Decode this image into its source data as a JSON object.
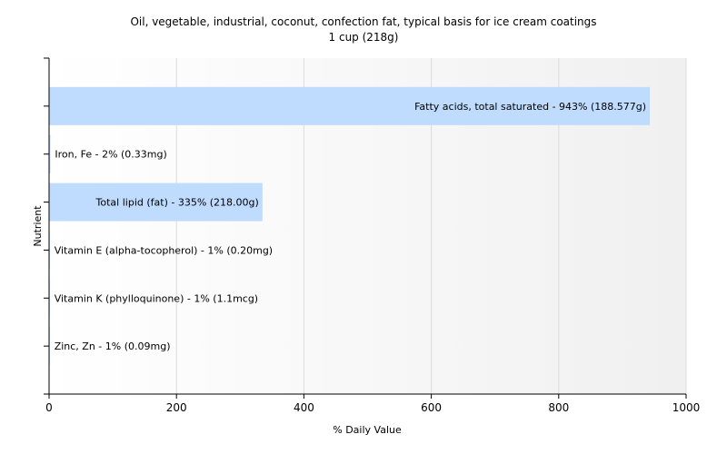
{
  "chart_data": {
    "type": "bar",
    "orientation": "horizontal",
    "title": "Oil, vegetable, industrial, coconut, confection fat, typical basis for ice cream coatings",
    "subtitle": "1 cup (218g)",
    "xlabel": "% Daily Value",
    "ylabel": "Nutrient",
    "xlim": [
      0,
      1000
    ],
    "xticks": [
      "0",
      "200",
      "400",
      "600",
      "800",
      "1000"
    ],
    "grid": true,
    "bar_color": "#bfdcff",
    "categories": [
      "Fatty acids, total saturated",
      "Iron, Fe",
      "Total lipid (fat)",
      "Vitamin E (alpha-tocopherol)",
      "Vitamin K (phylloquinone)",
      "Zinc, Zn"
    ],
    "values": [
      943,
      2,
      335,
      1,
      1,
      1
    ],
    "labels": [
      "Fatty acids, total saturated - 943% (188.577g)",
      "Iron, Fe - 2% (0.33mg)",
      "Total lipid (fat) - 335% (218.00g)",
      "Vitamin E (alpha-tocopherol) - 1% (0.20mg)",
      "Vitamin K (phylloquinone) - 1% (1.1mcg)",
      "Zinc, Zn - 1% (0.09mg)"
    ]
  }
}
